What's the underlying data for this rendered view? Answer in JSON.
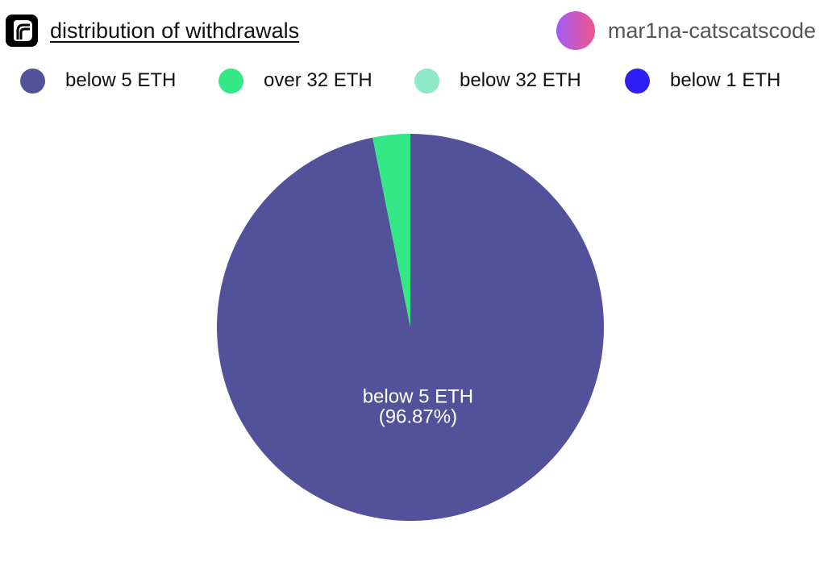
{
  "header": {
    "title": "distribution of withdrawals",
    "logo_icon": "flipside-logo-icon",
    "author": "mar1na-catscatscode",
    "avatar_gradient": [
      "#a25cf5",
      "#f0548c"
    ]
  },
  "legend": {
    "items": [
      {
        "label": "below 5 ETH",
        "color": "#51529a"
      },
      {
        "label": "over 32 ETH",
        "color": "#34e885"
      },
      {
        "label": "below 32 ETH",
        "color": "#8ee9c8"
      },
      {
        "label": "below 1 ETH",
        "color": "#2d1ef5"
      }
    ]
  },
  "chart_data": {
    "type": "pie",
    "title": "distribution of withdrawals",
    "legend_position": "top",
    "slices": [
      {
        "label": "below 5 ETH",
        "percent": 96.87,
        "color": "#51529a",
        "display_label": "below 5 ETH",
        "display_percent": "(96.87%)"
      },
      {
        "label": "over 32 ETH",
        "percent": 3.13,
        "color": "#34e885"
      }
    ]
  }
}
